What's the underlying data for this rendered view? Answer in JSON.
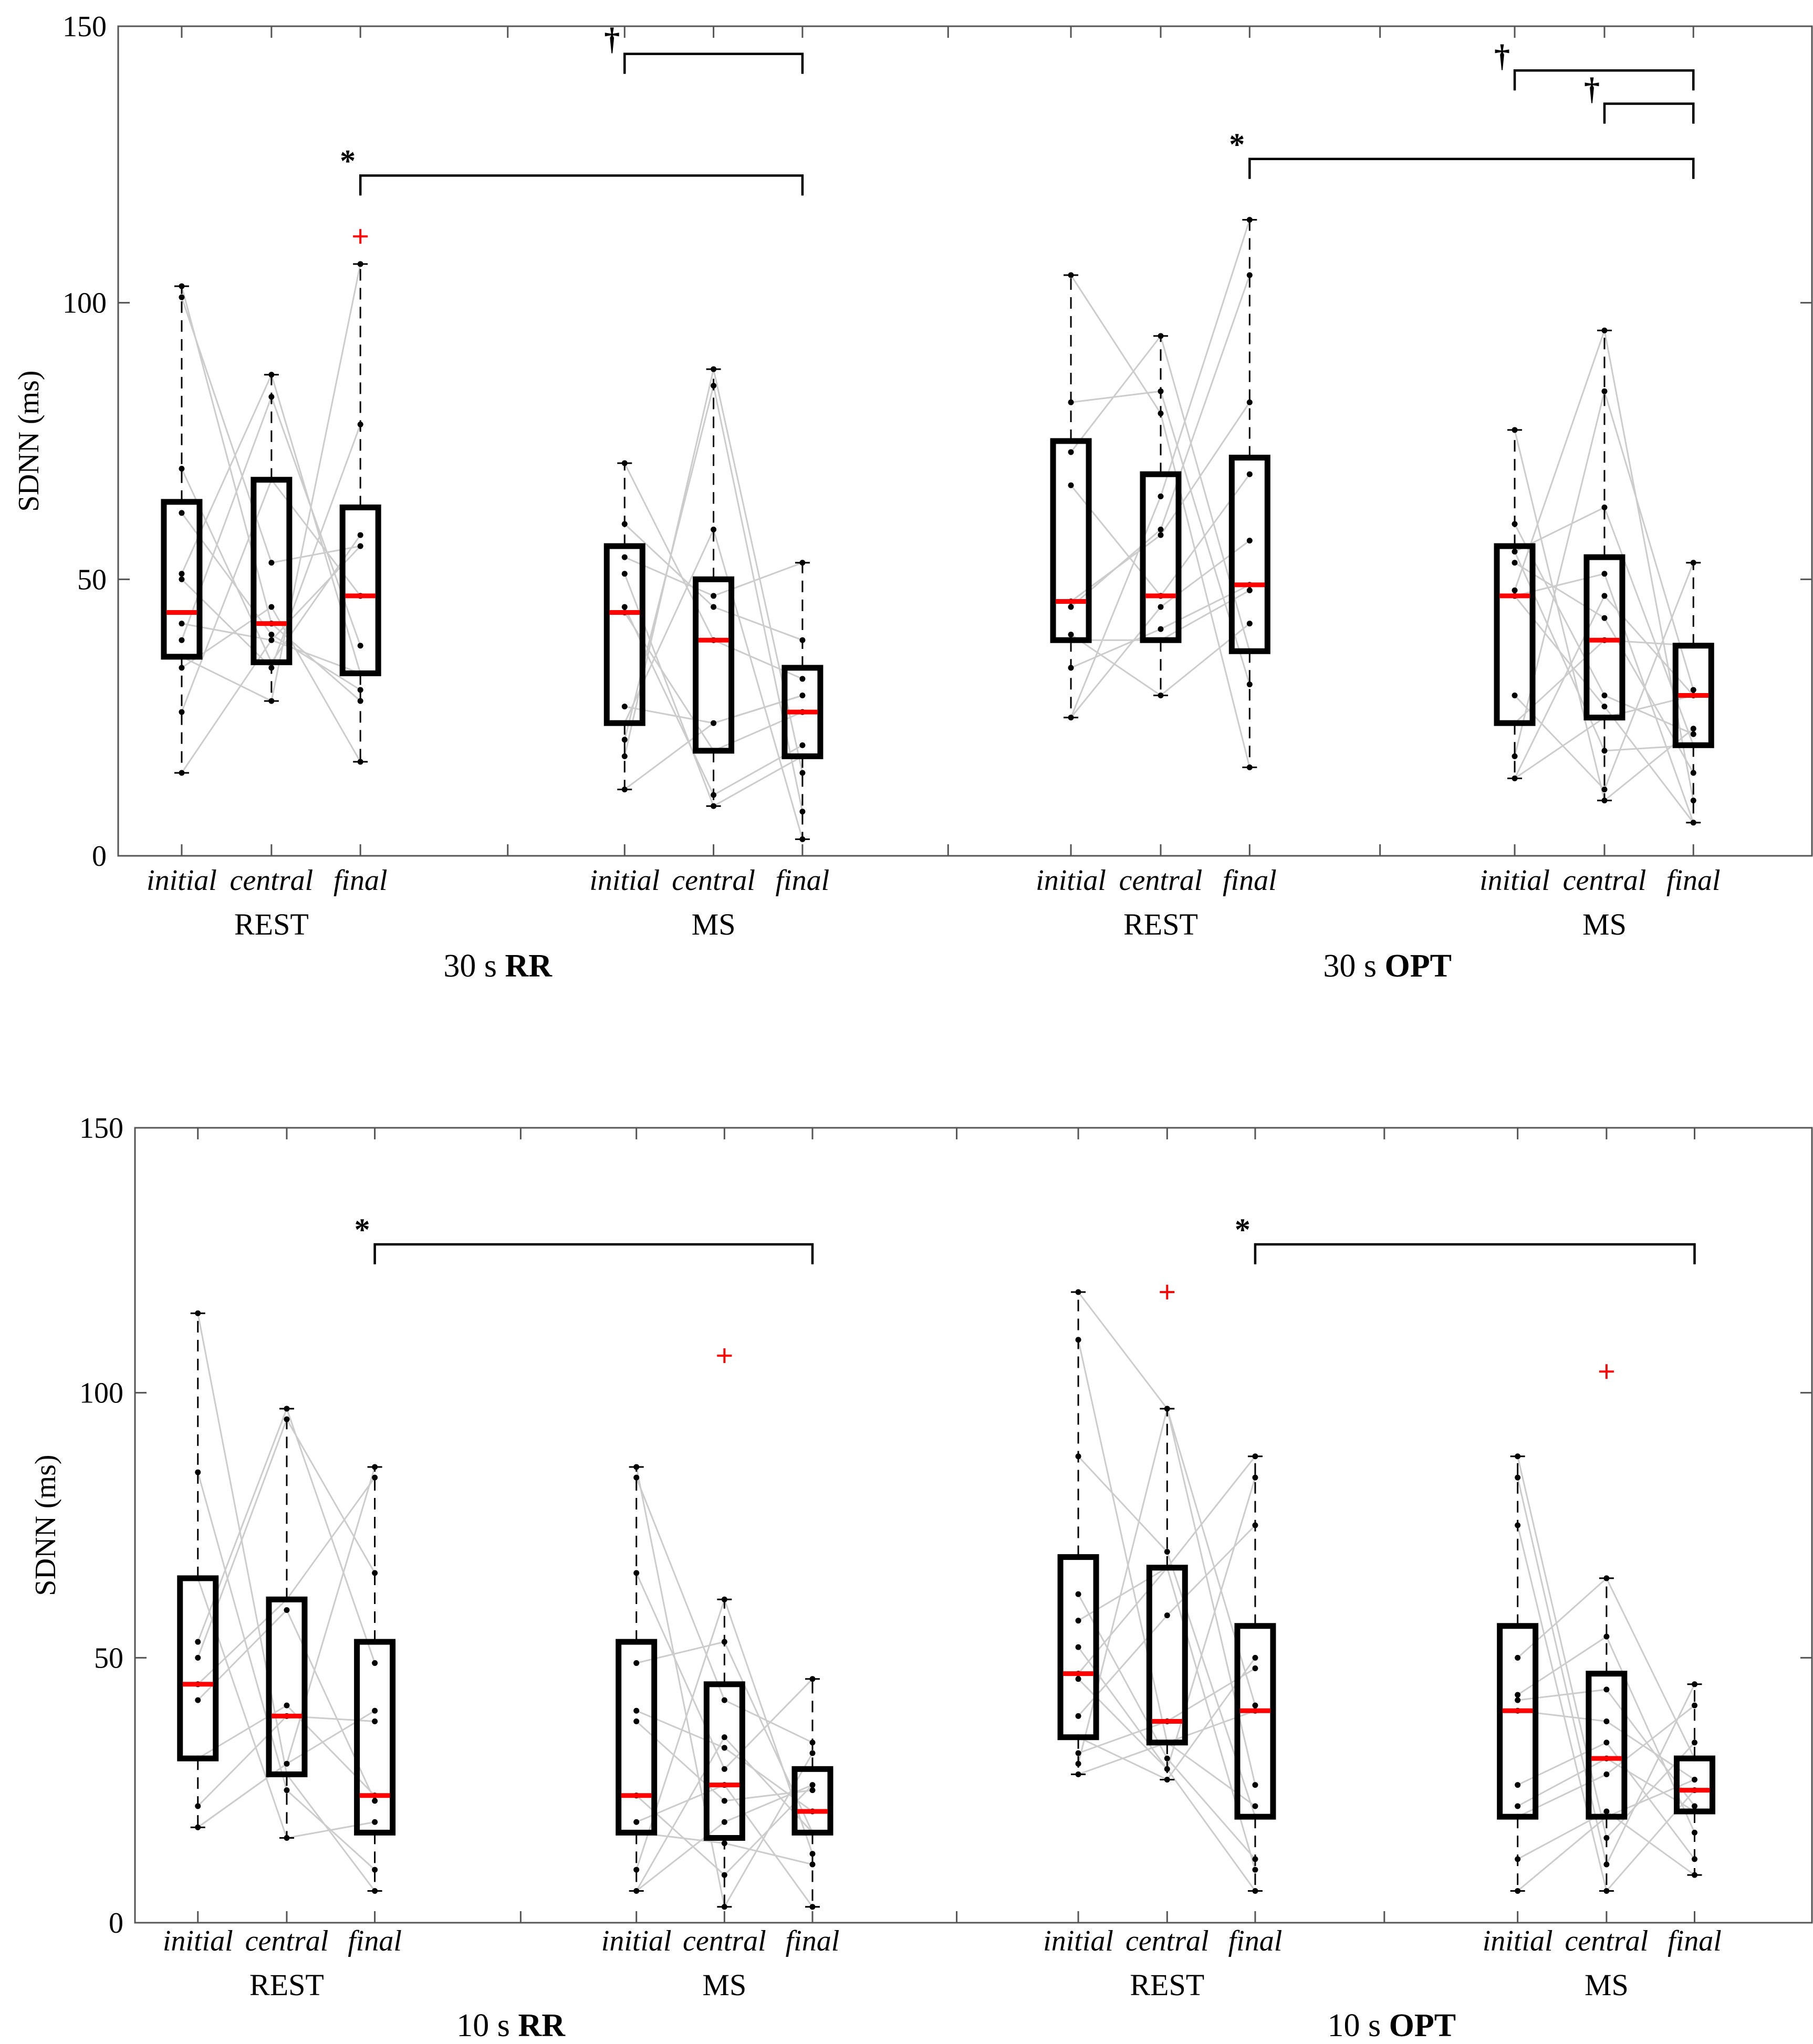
{
  "chart_data": [
    {
      "type": "box",
      "ylabel": "SDNN (ms)",
      "ylim": [
        0,
        150
      ],
      "yticks": [
        "0",
        "50",
        "100",
        "150"
      ],
      "panel_labels": [
        {
          "pre": "30 s ",
          "bold": "RR"
        },
        {
          "pre": "30 s ",
          "bold": "OPT"
        }
      ],
      "groups": [
        {
          "name": "REST",
          "boxes": [
            {
              "label": "initial",
              "q1": 36,
              "median": 44,
              "q3": 64,
              "whisker_low": 15,
              "whisker_high": 103,
              "outliers": [],
              "points": [
                15,
                26,
                34,
                36,
                39,
                42,
                50,
                51,
                62,
                70,
                101,
                103
              ]
            },
            {
              "label": "central",
              "q1": 35,
              "median": 42,
              "q3": 68,
              "whisker_low": 28,
              "whisker_high": 87,
              "outliers": [],
              "points": [
                28,
                34,
                35,
                39,
                40,
                42,
                45,
                53,
                68,
                83,
                87
              ]
            },
            {
              "label": "final",
              "q1": 33,
              "median": 47,
              "q3": 63,
              "whisker_low": 17,
              "whisker_high": 107,
              "outliers": [
                112
              ],
              "points": [
                17,
                28,
                30,
                33,
                38,
                47,
                56,
                58,
                78,
                107
              ]
            }
          ]
        },
        {
          "name": "MS",
          "boxes": [
            {
              "label": "initial",
              "q1": 24,
              "median": 44,
              "q3": 56,
              "whisker_low": 12,
              "whisker_high": 71,
              "outliers": [],
              "points": [
                12,
                18,
                21,
                24,
                27,
                44,
                45,
                51,
                54,
                60,
                71
              ]
            },
            {
              "label": "central",
              "q1": 19,
              "median": 39,
              "q3": 50,
              "whisker_low": 9,
              "whisker_high": 88,
              "outliers": [],
              "points": [
                9,
                11,
                19,
                24,
                39,
                45,
                47,
                59,
                85,
                88
              ]
            },
            {
              "label": "final",
              "q1": 18,
              "median": 26,
              "q3": 34,
              "whisker_low": 3,
              "whisker_high": 53,
              "outliers": [],
              "points": [
                3,
                8,
                15,
                18,
                20,
                26,
                29,
                32,
                39,
                53
              ]
            }
          ]
        },
        {
          "name": "REST",
          "boxes": [
            {
              "label": "initial",
              "q1": 39,
              "median": 46,
              "q3": 75,
              "whisker_low": 25,
              "whisker_high": 105,
              "outliers": [],
              "points": [
                25,
                34,
                39,
                40,
                45,
                46,
                67,
                73,
                82,
                105
              ]
            },
            {
              "label": "central",
              "q1": 39,
              "median": 47,
              "q3": 69,
              "whisker_low": 29,
              "whisker_high": 94,
              "outliers": [],
              "points": [
                29,
                39,
                41,
                45,
                47,
                58,
                59,
                65,
                80,
                84,
                94
              ]
            },
            {
              "label": "final",
              "q1": 37,
              "median": 49,
              "q3": 72,
              "whisker_low": 16,
              "whisker_high": 115,
              "outliers": [],
              "points": [
                16,
                31,
                37,
                42,
                48,
                49,
                57,
                69,
                82,
                105,
                115
              ]
            }
          ]
        },
        {
          "name": "MS",
          "boxes": [
            {
              "label": "initial",
              "q1": 24,
              "median": 47,
              "q3": 56,
              "whisker_low": 14,
              "whisker_high": 77,
              "outliers": [],
              "points": [
                14,
                18,
                24,
                29,
                47,
                48,
                53,
                55,
                60,
                77
              ]
            },
            {
              "label": "central",
              "q1": 25,
              "median": 39,
              "q3": 54,
              "whisker_low": 10,
              "whisker_high": 95,
              "outliers": [],
              "points": [
                10,
                12,
                19,
                25,
                27,
                29,
                39,
                43,
                47,
                51,
                63,
                84,
                95
              ]
            },
            {
              "label": "final",
              "q1": 20,
              "median": 29,
              "q3": 38,
              "whisker_low": 6,
              "whisker_high": 53,
              "outliers": [],
              "points": [
                6,
                10,
                15,
                20,
                22,
                23,
                29,
                30,
                38,
                53
              ]
            }
          ]
        }
      ],
      "annotations": [
        {
          "symbol": "†",
          "from": [
            1,
            0
          ],
          "to": [
            1,
            2
          ],
          "level": 145
        },
        {
          "symbol": "*",
          "from": [
            0,
            2
          ],
          "to": [
            1,
            2
          ],
          "level": 123
        },
        {
          "symbol": "†",
          "from": [
            3,
            0
          ],
          "to": [
            3,
            2
          ],
          "level": 142
        },
        {
          "symbol": "†",
          "from": [
            3,
            1
          ],
          "to": [
            3,
            2
          ],
          "level": 136
        },
        {
          "symbol": "*",
          "from": [
            2,
            2
          ],
          "to": [
            3,
            2
          ],
          "level": 126
        }
      ]
    },
    {
      "type": "box",
      "ylabel": "SDNN (ms)",
      "ylim": [
        0,
        150
      ],
      "yticks": [
        "0",
        "50",
        "100",
        "150"
      ],
      "panel_labels": [
        {
          "pre": "10 s ",
          "bold": "RR"
        },
        {
          "pre": "10 s ",
          "bold": "OPT"
        }
      ],
      "groups": [
        {
          "name": "REST",
          "boxes": [
            {
              "label": "initial",
              "q1": 31,
              "median": 45,
              "q3": 65,
              "whisker_low": 18,
              "whisker_high": 115,
              "outliers": [],
              "points": [
                18,
                22,
                31,
                42,
                45,
                50,
                53,
                65,
                85,
                115
              ]
            },
            {
              "label": "central",
              "q1": 28,
              "median": 39,
              "q3": 61,
              "whisker_low": 16,
              "whisker_high": 97,
              "outliers": [],
              "points": [
                16,
                25,
                28,
                30,
                39,
                41,
                59,
                61,
                95,
                97
              ]
            },
            {
              "label": "final",
              "q1": 17,
              "median": 24,
              "q3": 53,
              "whisker_low": 6,
              "whisker_high": 86,
              "outliers": [],
              "points": [
                6,
                10,
                19,
                23,
                24,
                38,
                40,
                49,
                66,
                84,
                86
              ]
            }
          ]
        },
        {
          "name": "MS",
          "boxes": [
            {
              "label": "initial",
              "q1": 17,
              "median": 24,
              "q3": 53,
              "whisker_low": 6,
              "whisker_high": 86,
              "outliers": [],
              "points": [
                6,
                10,
                17,
                19,
                24,
                38,
                40,
                49,
                66,
                84,
                86
              ]
            },
            {
              "label": "central",
              "q1": 16,
              "median": 26,
              "q3": 45,
              "whisker_low": 3,
              "whisker_high": 61,
              "outliers": [
                107
              ],
              "points": [
                3,
                9,
                15,
                19,
                23,
                26,
                29,
                33,
                35,
                42,
                53,
                61
              ]
            },
            {
              "label": "final",
              "q1": 17,
              "median": 21,
              "q3": 29,
              "whisker_low": 3,
              "whisker_high": 46,
              "outliers": [],
              "points": [
                3,
                11,
                13,
                17,
                21,
                25,
                26,
                32,
                34,
                46
              ]
            }
          ]
        },
        {
          "name": "REST",
          "boxes": [
            {
              "label": "initial",
              "q1": 35,
              "median": 47,
              "q3": 69,
              "whisker_low": 28,
              "whisker_high": 119,
              "outliers": [],
              "points": [
                28,
                30,
                32,
                35,
                39,
                46,
                47,
                52,
                57,
                62,
                88,
                110,
                119
              ]
            },
            {
              "label": "central",
              "q1": 34,
              "median": 38,
              "q3": 67,
              "whisker_low": 27,
              "whisker_high": 97,
              "outliers": [
                119
              ],
              "points": [
                27,
                29,
                31,
                34,
                38,
                58,
                67,
                70,
                97
              ]
            },
            {
              "label": "final",
              "q1": 20,
              "median": 40,
              "q3": 56,
              "whisker_low": 6,
              "whisker_high": 88,
              "outliers": [],
              "points": [
                6,
                10,
                12,
                20,
                22,
                26,
                40,
                41,
                48,
                50,
                75,
                84,
                88
              ]
            }
          ]
        },
        {
          "name": "MS",
          "boxes": [
            {
              "label": "initial",
              "q1": 20,
              "median": 40,
              "q3": 56,
              "whisker_low": 6,
              "whisker_high": 88,
              "outliers": [],
              "points": [
                6,
                12,
                20,
                22,
                26,
                40,
                42,
                43,
                50,
                75,
                84,
                88
              ]
            },
            {
              "label": "central",
              "q1": 20,
              "median": 31,
              "q3": 47,
              "whisker_low": 6,
              "whisker_high": 65,
              "outliers": [
                104
              ],
              "points": [
                6,
                11,
                16,
                20,
                21,
                28,
                31,
                34,
                38,
                44,
                54,
                65
              ]
            },
            {
              "label": "final",
              "q1": 21,
              "median": 25,
              "q3": 31,
              "whisker_low": 9,
              "whisker_high": 45,
              "outliers": [],
              "points": [
                9,
                12,
                17,
                21,
                22,
                25,
                27,
                31,
                34,
                41,
                45
              ]
            }
          ]
        }
      ],
      "annotations": [
        {
          "symbol": "*",
          "from": [
            0,
            2
          ],
          "to": [
            1,
            2
          ],
          "level": 128
        },
        {
          "symbol": "*",
          "from": [
            2,
            2
          ],
          "to": [
            3,
            2
          ],
          "level": 128
        }
      ]
    }
  ],
  "colors": {
    "box": "#000000",
    "median": "#ff0000",
    "outlier": "#ff0000",
    "subject_lines": "#cccccc",
    "points": "#000000",
    "axes": "#555555"
  }
}
